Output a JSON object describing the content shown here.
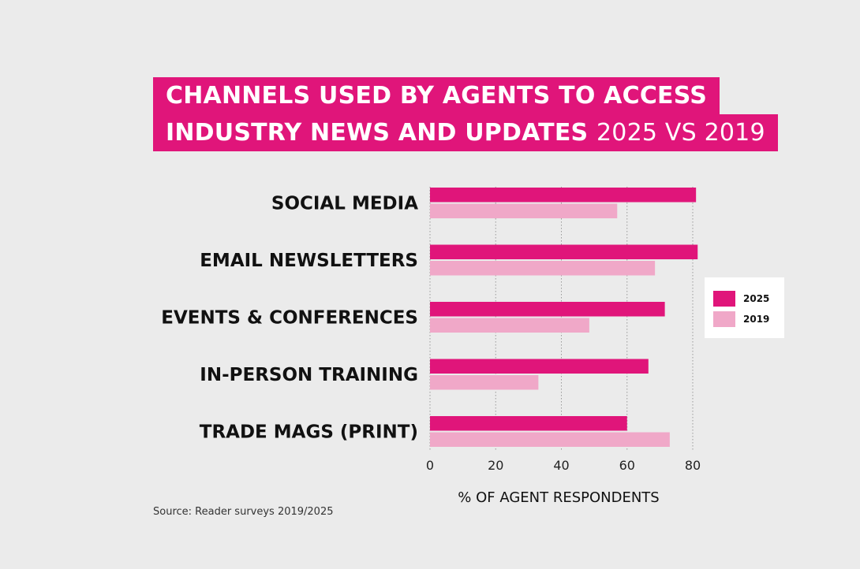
{
  "header": {
    "title_line_1": "CHANNELS USED BY AGENTS TO ACCESS",
    "title_line_2": "INDUSTRY NEWS AND UPDATES",
    "title_suffix": "2025 VS 2019"
  },
  "source": "Source: Reader surveys 2019/2025",
  "colors": {
    "series_2025": "#e0157a",
    "series_2019": "#f0a8c8",
    "title_bg": "#e0157a",
    "background": "#ebebeb"
  },
  "chart_data": {
    "type": "bar",
    "orientation": "horizontal",
    "categories": [
      "SOCIAL MEDIA",
      "EMAIL NEWSLETTERS",
      "EVENTS & CONFERENCES",
      "IN-PERSON TRAINING",
      "TRADE MAGS (PRINT)"
    ],
    "series": [
      {
        "name": "2025",
        "values": [
          81,
          81.5,
          71.5,
          66.5,
          60
        ]
      },
      {
        "name": "2019",
        "values": [
          57,
          68.5,
          48.5,
          33,
          73
        ]
      }
    ],
    "xlabel": "% OF AGENT RESPONDENTS",
    "ylabel": "",
    "xlim": [
      0,
      80
    ],
    "xticks": [
      "0",
      "20",
      "40",
      "60",
      "80"
    ],
    "grid": "vertical dotted",
    "legend": {
      "position": "right",
      "entries": [
        "2025",
        "2019"
      ]
    }
  }
}
